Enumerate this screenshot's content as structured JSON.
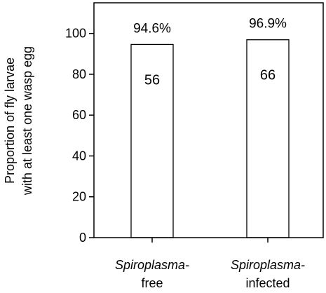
{
  "chart_data": {
    "type": "bar",
    "title": "",
    "xlabel": "",
    "ylabel": [
      "Proportion of fly larvae",
      "with at least one wasp egg"
    ],
    "ylim": [
      0,
      115
    ],
    "yticks": [
      0,
      20,
      40,
      60,
      80,
      100
    ],
    "grid": false,
    "categories": [
      {
        "line1": "Spiroplasma-",
        "line2": "free"
      },
      {
        "line1": "Spiroplasma-",
        "line2": "infected"
      }
    ],
    "values": [
      94.6,
      96.9
    ],
    "percent_labels": [
      "94.6%",
      "96.9%"
    ],
    "count_labels": [
      "56",
      "66"
    ],
    "colors": {
      "bar_fill": "#ffffff",
      "bar_stroke": "#000000",
      "axis": "#000000"
    }
  }
}
